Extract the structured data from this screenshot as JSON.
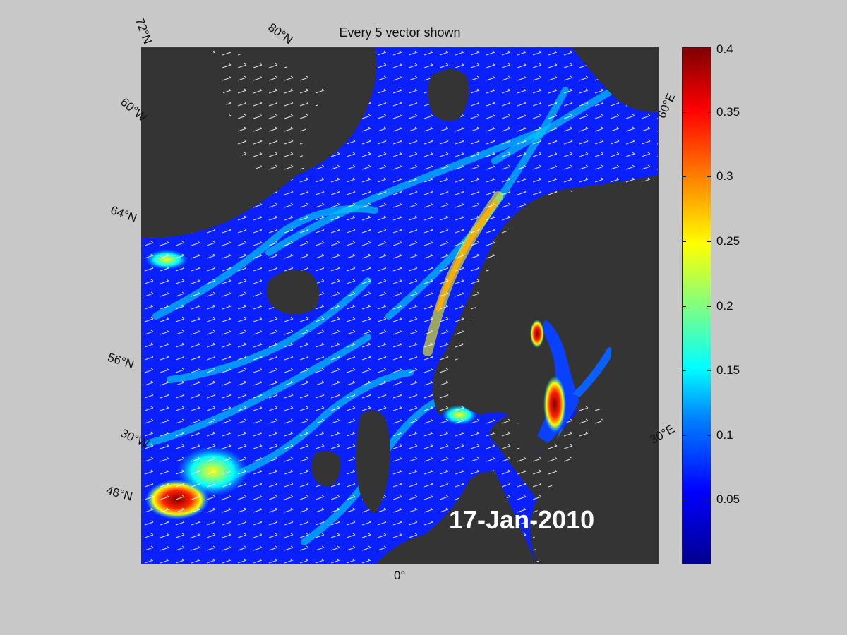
{
  "title": "Every 5 vector shown",
  "date": "17-Jan-2010",
  "grid_labels": {
    "lat_72": "72°N",
    "lat_80": "80°N",
    "lat_60w": "60°W",
    "lat_64": "64°N",
    "lat_56": "56°N",
    "lon_30w": "30°W",
    "lat_48": "48°N",
    "lon_0": "0°",
    "lon_30e": "30°E",
    "lon_60e": "60°E"
  },
  "colorbar": {
    "min": 0,
    "max": 0.4,
    "ticks": [
      "0.4",
      "0.35",
      "0.3",
      "0.25",
      "0.2",
      "0.15",
      "0.1",
      "0.05"
    ],
    "tick_values": [
      0.4,
      0.35,
      0.3,
      0.25,
      0.2,
      0.15,
      0.1,
      0.05
    ]
  },
  "colors": {
    "background": "#c8c8c8",
    "land": "#343434",
    "ocean_low": "#0000ff",
    "ocean_mid": "#00c0ff",
    "high": "#ff0000"
  }
}
